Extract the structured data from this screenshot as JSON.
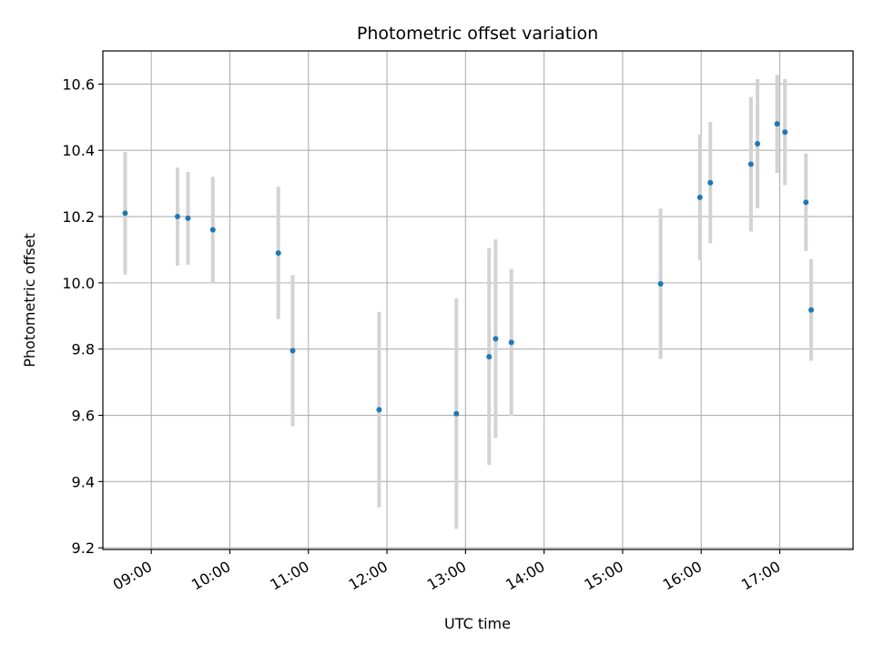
{
  "chart_data": {
    "type": "scatter",
    "title": "Photometric offset variation",
    "xlabel": "UTC time",
    "ylabel": "Photometric offset",
    "x_tick_labels": [
      "09:00",
      "10:00",
      "11:00",
      "12:00",
      "13:00",
      "14:00",
      "15:00",
      "16:00",
      "17:00"
    ],
    "y_tick_labels": [
      "9.2",
      "9.4",
      "9.6",
      "9.8",
      "10.0",
      "10.2",
      "10.4",
      "10.6"
    ],
    "y_ticks": [
      9.2,
      9.4,
      9.6,
      9.8,
      10.0,
      10.2,
      10.4,
      10.6
    ],
    "xlim": [
      "08:23",
      "17:56"
    ],
    "ylim": [
      9.195,
      10.7
    ],
    "grid": true,
    "colors": {
      "point": "#1f77b4",
      "errorbar": "#d3d3d3",
      "grid": "#b0b0b0"
    },
    "series": [
      {
        "points": [
          {
            "x": "08:40",
            "y": 10.21,
            "err": 0.185
          },
          {
            "x": "09:20",
            "y": 10.2,
            "err": 0.148
          },
          {
            "x": "09:28",
            "y": 10.195,
            "err": 0.14
          },
          {
            "x": "09:47",
            "y": 10.16,
            "err": 0.16
          },
          {
            "x": "10:37",
            "y": 10.09,
            "err": 0.2
          },
          {
            "x": "10:48",
            "y": 9.795,
            "err": 0.228
          },
          {
            "x": "11:54",
            "y": 9.617,
            "err": 0.295
          },
          {
            "x": "12:53",
            "y": 9.605,
            "err": 0.348
          },
          {
            "x": "13:18",
            "y": 9.777,
            "err": 0.327
          },
          {
            "x": "13:23",
            "y": 9.831,
            "err": 0.3
          },
          {
            "x": "13:35",
            "y": 9.82,
            "err": 0.222
          },
          {
            "x": "15:29",
            "y": 9.997,
            "err": 0.227
          },
          {
            "x": "15:59",
            "y": 10.258,
            "err": 0.19
          },
          {
            "x": "16:07",
            "y": 10.302,
            "err": 0.183
          },
          {
            "x": "16:38",
            "y": 10.358,
            "err": 0.203
          },
          {
            "x": "16:43",
            "y": 10.42,
            "err": 0.195
          },
          {
            "x": "16:58",
            "y": 10.48,
            "err": 0.148
          },
          {
            "x": "17:04",
            "y": 10.455,
            "err": 0.16
          },
          {
            "x": "17:20",
            "y": 10.243,
            "err": 0.147
          },
          {
            "x": "17:24",
            "y": 9.918,
            "err": 0.153
          }
        ]
      }
    ]
  }
}
